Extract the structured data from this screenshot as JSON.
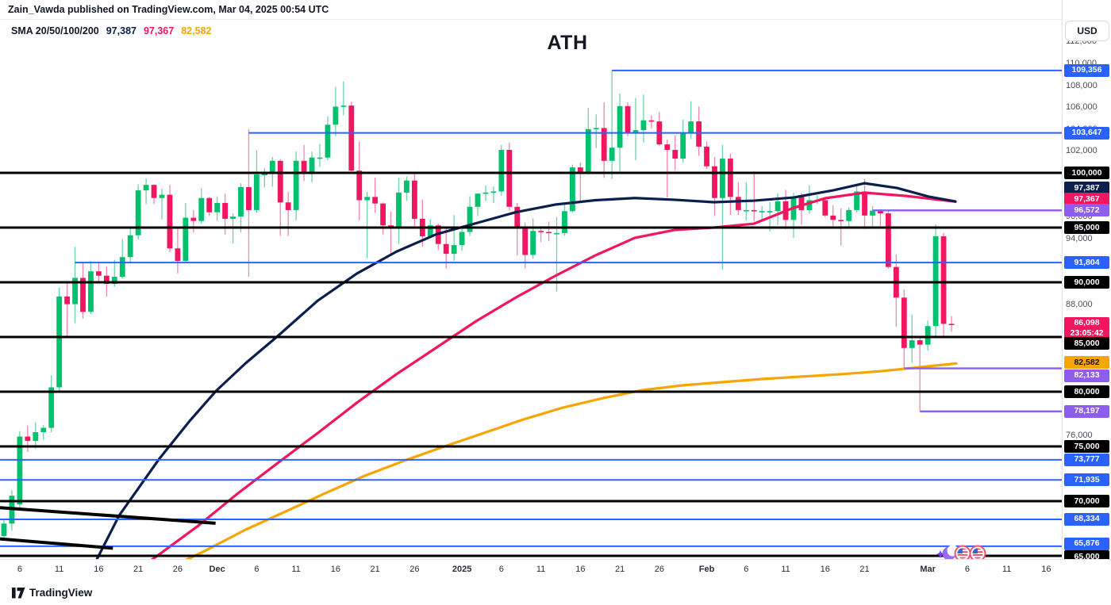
{
  "header": {
    "publisher": "Zain_Vawda published on TradingView.com, Mar 04, 2025 00:54 UTC"
  },
  "legend": {
    "label": "SMA 20/50/100/200",
    "values": [
      {
        "text": "97,387",
        "color": "#0c1e4e"
      },
      {
        "text": "97,367",
        "color": "#f2155f"
      },
      {
        "text": "82,582",
        "color": "#f7a500"
      }
    ]
  },
  "title": "ATH",
  "currency_button": "USD",
  "watermark": "TradingView",
  "colors": {
    "up": "#00c26e",
    "down": "#f2155f",
    "up_wick": "#6fd3a7",
    "down_wick": "#f585ad",
    "blue_level": "#2962ff",
    "purple_level": "#8f5cf0",
    "black_level": "#000000",
    "sma_navy": "#0c1e4e",
    "sma_crimson": "#f2155f",
    "sma_orange": "#f7a500",
    "chip_black_bg": "#000000",
    "chip_orange_fg": "#111111",
    "last_chip_bg": "#f2155f"
  },
  "chart_data": {
    "type": "candlestick",
    "interval": "1D",
    "title": "ATH",
    "last_price": {
      "value": 86098,
      "label": "86,098",
      "countdown": "23:05:42"
    },
    "price_axis": {
      "gray_ticks": [
        112000,
        110000,
        108000,
        106000,
        104000,
        102000,
        96000,
        94000,
        88000,
        76000,
        74000
      ],
      "chips": [
        {
          "price": 109356,
          "style": "blue"
        },
        {
          "price": 103647,
          "style": "blue"
        },
        {
          "price": 100000,
          "style": "black"
        },
        {
          "price": 97387,
          "style": "navy"
        },
        {
          "price": 97367,
          "style": "crimson"
        },
        {
          "price": 96572,
          "style": "purple"
        },
        {
          "price": 95000,
          "style": "black"
        },
        {
          "price": 91804,
          "style": "blue"
        },
        {
          "price": 90000,
          "style": "black"
        },
        {
          "price": 86098,
          "style": "last"
        },
        {
          "price": 85000,
          "style": "black"
        },
        {
          "price": 82582,
          "style": "orange"
        },
        {
          "price": 82133,
          "style": "purple"
        },
        {
          "price": 80000,
          "style": "black"
        },
        {
          "price": 78197,
          "style": "purple"
        },
        {
          "price": 75000,
          "style": "black"
        },
        {
          "price": 73777,
          "style": "blue"
        },
        {
          "price": 71935,
          "style": "blue"
        },
        {
          "price": 70000,
          "style": "black"
        },
        {
          "price": 68334,
          "style": "blue"
        },
        {
          "price": 65876,
          "style": "blue"
        },
        {
          "price": 65000,
          "style": "black"
        }
      ]
    },
    "time_axis": {
      "labels": [
        {
          "t": "6",
          "i": 2
        },
        {
          "t": "11",
          "i": 7
        },
        {
          "t": "16",
          "i": 12
        },
        {
          "t": "21",
          "i": 17
        },
        {
          "t": "26",
          "i": 22
        },
        {
          "t": "Dec",
          "i": 27,
          "em": 1
        },
        {
          "t": "6",
          "i": 32
        },
        {
          "t": "11",
          "i": 37
        },
        {
          "t": "16",
          "i": 42
        },
        {
          "t": "21",
          "i": 47
        },
        {
          "t": "26",
          "i": 52
        },
        {
          "t": "2025",
          "i": 58,
          "em": 2
        },
        {
          "t": "6",
          "i": 63
        },
        {
          "t": "11",
          "i": 68
        },
        {
          "t": "16",
          "i": 73
        },
        {
          "t": "21",
          "i": 78
        },
        {
          "t": "26",
          "i": 83
        },
        {
          "t": "Feb",
          "i": 89,
          "em": 1
        },
        {
          "t": "6",
          "i": 94
        },
        {
          "t": "11",
          "i": 99
        },
        {
          "t": "16",
          "i": 104
        },
        {
          "t": "21",
          "i": 109
        },
        {
          "t": "Mar",
          "i": 117,
          "em": 1
        },
        {
          "t": "6",
          "i": 122
        },
        {
          "t": "11",
          "i": 127
        },
        {
          "t": "16",
          "i": 132
        }
      ]
    },
    "levels": {
      "black": [
        100000,
        95000,
        90000,
        85000,
        80000,
        75000,
        70000,
        65000
      ],
      "blue": [
        {
          "price": 109356,
          "from": 77
        },
        {
          "price": 103647,
          "from": 31
        },
        {
          "price": 91804,
          "from": 9
        },
        {
          "price": 73777,
          "from": -0.6
        },
        {
          "price": 71935,
          "from": -0.6
        },
        {
          "price": 68334,
          "from": -0.6
        },
        {
          "price": 65876,
          "from": -0.6
        }
      ],
      "purple": [
        {
          "price": 96572,
          "from": 110
        },
        {
          "price": 82133,
          "from": 114
        },
        {
          "price": 78197,
          "from": 116
        }
      ]
    },
    "trendlines": [
      {
        "from_i": -0.5,
        "from_p": 69400,
        "to_i": 26.8,
        "to_p": 67980
      },
      {
        "from_i": -0.5,
        "from_p": 66550,
        "to_i": 13.8,
        "to_p": 65700
      }
    ],
    "sma": {
      "navy": [
        [
          8,
          60500
        ],
        [
          11,
          63600
        ],
        [
          14.6,
          68700
        ],
        [
          19.6,
          73800
        ],
        [
          23.6,
          77400
        ],
        [
          26.9,
          80100
        ],
        [
          30.6,
          82600
        ],
        [
          34.7,
          85100
        ],
        [
          39.7,
          88300
        ],
        [
          44.7,
          90800
        ],
        [
          49.7,
          92800
        ],
        [
          54.8,
          94400
        ],
        [
          59.8,
          95400
        ],
        [
          64.8,
          96400
        ],
        [
          69.8,
          97100
        ],
        [
          74.9,
          97500
        ],
        [
          79.9,
          97700
        ],
        [
          84.9,
          97540
        ],
        [
          89.9,
          97320
        ],
        [
          95,
          97460
        ],
        [
          100,
          97750
        ],
        [
          105,
          98400
        ],
        [
          109,
          99050
        ],
        [
          113.1,
          98620
        ],
        [
          117.1,
          97830
        ],
        [
          120.5,
          97387
        ]
      ],
      "crimson": [
        [
          9.8,
          60500
        ],
        [
          14.6,
          62500
        ],
        [
          19.6,
          65100
        ],
        [
          24.6,
          67750
        ],
        [
          29.6,
          70700
        ],
        [
          34.7,
          73500
        ],
        [
          39.7,
          76200
        ],
        [
          44.7,
          79000
        ],
        [
          49.7,
          81600
        ],
        [
          54.8,
          84050
        ],
        [
          59.8,
          86450
        ],
        [
          64.8,
          88600
        ],
        [
          69.8,
          90580
        ],
        [
          74.9,
          92460
        ],
        [
          79.9,
          94060
        ],
        [
          84.9,
          94780
        ],
        [
          89.9,
          95000
        ],
        [
          95,
          95360
        ],
        [
          100,
          96800
        ],
        [
          104,
          97680
        ],
        [
          109,
          98190
        ],
        [
          114.1,
          97900
        ],
        [
          120.5,
          97367
        ]
      ],
      "orange": [
        [
          11.1,
          60500
        ],
        [
          15.6,
          62030
        ],
        [
          20.6,
          63770
        ],
        [
          25.6,
          65510
        ],
        [
          30.6,
          67390
        ],
        [
          35.7,
          69060
        ],
        [
          40.7,
          70730
        ],
        [
          45.7,
          72320
        ],
        [
          50.7,
          73700
        ],
        [
          55.8,
          75000
        ],
        [
          60.8,
          76230
        ],
        [
          65.8,
          77470
        ],
        [
          70.8,
          78550
        ],
        [
          75.9,
          79420
        ],
        [
          80.9,
          80150
        ],
        [
          85.9,
          80580
        ],
        [
          90.9,
          80870
        ],
        [
          96,
          81160
        ],
        [
          101,
          81380
        ],
        [
          106,
          81600
        ],
        [
          111.1,
          81880
        ],
        [
          116.1,
          82250
        ],
        [
          120.6,
          82582
        ]
      ]
    },
    "candles": [
      [
        66800,
        68300,
        66400,
        67950
      ],
      [
        67950,
        71000,
        67300,
        70500
      ],
      [
        69700,
        76400,
        69100,
        75900
      ],
      [
        75900,
        76900,
        74500,
        75500
      ],
      [
        75500,
        77200,
        74800,
        76300
      ],
      [
        76300,
        76950,
        75600,
        76700
      ],
      [
        76700,
        81500,
        76300,
        80400
      ],
      [
        80400,
        89500,
        80100,
        88700
      ],
      [
        88700,
        90100,
        85100,
        88000
      ],
      [
        88000,
        93250,
        86250,
        90400
      ],
      [
        90400,
        91850,
        86700,
        87300
      ],
      [
        87300,
        91950,
        87100,
        91000
      ],
      [
        91000,
        91800,
        90000,
        90600
      ],
      [
        90600,
        91450,
        88700,
        89850
      ],
      [
        89850,
        92050,
        89600,
        90500
      ],
      [
        90500,
        93950,
        90350,
        92300
      ],
      [
        92300,
        94900,
        91750,
        94300
      ],
      [
        94300,
        98950,
        93900,
        98400
      ],
      [
        98400,
        99500,
        97150,
        98900
      ],
      [
        98900,
        98950,
        97150,
        97700
      ],
      [
        97700,
        98550,
        95750,
        98000
      ],
      [
        98000,
        98900,
        92750,
        93100
      ],
      [
        93100,
        94950,
        90800,
        91950
      ],
      [
        91950,
        97250,
        91800,
        95900
      ],
      [
        95900,
        96600,
        94550,
        95600
      ],
      [
        95600,
        98600,
        95350,
        97700
      ],
      [
        97700,
        97800,
        96050,
        96400
      ],
      [
        96400,
        97850,
        95650,
        97250
      ],
      [
        97250,
        98100,
        94350,
        95800
      ],
      [
        95800,
        96300,
        93550,
        96000
      ],
      [
        96000,
        99050,
        94550,
        98700
      ],
      [
        98700,
        104000,
        90500,
        96600
      ],
      [
        96600,
        102050,
        96350,
        99850
      ],
      [
        99850,
        100450,
        98650,
        99900
      ],
      [
        99900,
        101450,
        98750,
        101100
      ],
      [
        101100,
        101250,
        94250,
        97300
      ],
      [
        97300,
        98250,
        94250,
        96600
      ],
      [
        96600,
        101950,
        95650,
        101100
      ],
      [
        101100,
        102550,
        99250,
        100000
      ],
      [
        100000,
        101950,
        99150,
        101400
      ],
      [
        101400,
        102650,
        100550,
        101400
      ],
      [
        101400,
        105150,
        101150,
        104400
      ],
      [
        104400,
        107850,
        103350,
        106050
      ],
      [
        106050,
        108350,
        105250,
        106150
      ],
      [
        106150,
        106500,
        99950,
        100200
      ],
      [
        100200,
        102850,
        95650,
        97500
      ],
      [
        97500,
        98250,
        92200,
        97800
      ],
      [
        97800,
        99550,
        96350,
        97200
      ],
      [
        97200,
        97300,
        94350,
        95200
      ],
      [
        95200,
        96450,
        92450,
        94900
      ],
      [
        94900,
        99550,
        93500,
        98200
      ],
      [
        98200,
        99650,
        97450,
        99300
      ],
      [
        99300,
        99950,
        95150,
        95800
      ],
      [
        95800,
        97550,
        93250,
        94200
      ],
      [
        94200,
        95750,
        94050,
        95200
      ],
      [
        95200,
        95350,
        92950,
        93500
      ],
      [
        93500,
        94950,
        91250,
        92600
      ],
      [
        92600,
        96150,
        91950,
        93400
      ],
      [
        93400,
        95150,
        92850,
        94600
      ],
      [
        94600,
        97850,
        94250,
        96900
      ],
      [
        96900,
        98150,
        96050,
        98100
      ],
      [
        98100,
        98850,
        97450,
        98200
      ],
      [
        98200,
        98750,
        97250,
        98300
      ],
      [
        98300,
        102550,
        97900,
        102100
      ],
      [
        102100,
        102750,
        96550,
        96900
      ],
      [
        96900,
        97250,
        92450,
        95000
      ],
      [
        95000,
        95450,
        91250,
        92500
      ],
      [
        92500,
        95850,
        92150,
        94700
      ],
      [
        94700,
        95150,
        93650,
        94600
      ],
      [
        94600,
        95550,
        93750,
        94500
      ],
      [
        94500,
        95950,
        89150,
        94500
      ],
      [
        94500,
        97150,
        94250,
        96500
      ],
      [
        96500,
        100750,
        96350,
        100500
      ],
      [
        100500,
        100950,
        97250,
        100000
      ],
      [
        100000,
        105950,
        99850,
        104000
      ],
      [
        104000,
        105350,
        102250,
        104100
      ],
      [
        104100,
        106450,
        99550,
        101100
      ],
      [
        101100,
        109356,
        99450,
        102300
      ],
      [
        102300,
        107250,
        100050,
        106100
      ],
      [
        106100,
        106450,
        103350,
        103700
      ],
      [
        103700,
        106850,
        101150,
        103900
      ],
      [
        103900,
        107150,
        102750,
        104800
      ],
      [
        104800,
        105250,
        104050,
        104700
      ],
      [
        104700,
        105550,
        102450,
        102600
      ],
      [
        102600,
        103050,
        97750,
        102100
      ],
      [
        102100,
        103450,
        100250,
        101300
      ],
      [
        101300,
        104850,
        100950,
        103700
      ],
      [
        103700,
        106550,
        103150,
        104700
      ],
      [
        104700,
        106050,
        101550,
        102400
      ],
      [
        102400,
        102850,
        100350,
        100600
      ],
      [
        100600,
        101450,
        96050,
        97700
      ],
      [
        97700,
        102550,
        91150,
        101300
      ],
      [
        101300,
        101750,
        96150,
        97800
      ],
      [
        97800,
        99150,
        96150,
        96600
      ],
      [
        96600,
        99150,
        95650,
        96600
      ],
      [
        96600,
        100150,
        95550,
        96500
      ],
      [
        96500,
        96950,
        95750,
        96500
      ],
      [
        96500,
        97350,
        94650,
        96500
      ],
      [
        96500,
        98150,
        95250,
        97400
      ],
      [
        97400,
        98450,
        94850,
        95700
      ],
      [
        95700,
        98150,
        94050,
        97800
      ],
      [
        97800,
        98150,
        95250,
        96600
      ],
      [
        96600,
        98850,
        96250,
        97500
      ],
      [
        97500,
        97950,
        97150,
        97500
      ],
      [
        97500,
        97750,
        95950,
        96100
      ],
      [
        96100,
        97050,
        95150,
        95700
      ],
      [
        95700,
        96750,
        93350,
        95600
      ],
      [
        95600,
        96850,
        94950,
        96600
      ],
      [
        96600,
        98850,
        96350,
        98300
      ],
      [
        98300,
        99450,
        94850,
        96100
      ],
      [
        96100,
        96950,
        95150,
        96550
      ],
      [
        96550,
        96700,
        95150,
        96300
      ],
      [
        96300,
        96500,
        91250,
        91400
      ],
      [
        91400,
        92550,
        85950,
        88600
      ],
      [
        88600,
        89350,
        82133,
        84000
      ],
      [
        84000,
        87050,
        82650,
        84700
      ],
      [
        84700,
        85100,
        78197,
        84300
      ],
      [
        84300,
        86500,
        83750,
        86000
      ],
      [
        86000,
        95300,
        85050,
        94200
      ],
      [
        94200,
        94500,
        85050,
        86200
      ],
      [
        86200,
        86900,
        85450,
        86098
      ]
    ],
    "events": [
      "moon-sparkle-icon",
      "us-flag-icon",
      "us-flag-icon"
    ]
  }
}
